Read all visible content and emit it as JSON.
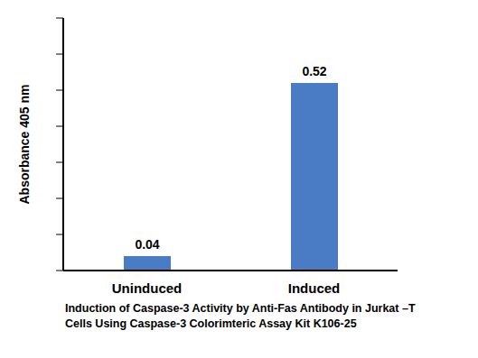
{
  "chart_data": {
    "type": "bar",
    "title": "Induction of Caspase-3 Activity by Anti-Fas Antibody in Jurkat –T Cells Using Caspase-3 Colorimteric Assay Kit K106-25",
    "y_label": "Absorbance  405 nm",
    "categories": [
      "Uninduced",
      "Induced"
    ],
    "values": [
      0.04,
      0.52
    ],
    "color": "#4a7cc6",
    "ylim": [
      0,
      0.7
    ],
    "yticks": [
      0,
      0.1,
      0.2,
      0.3,
      0.4,
      0.5,
      0.6,
      0.7
    ],
    "grid": false,
    "data_labels": true,
    "tick_labels": "x"
  }
}
